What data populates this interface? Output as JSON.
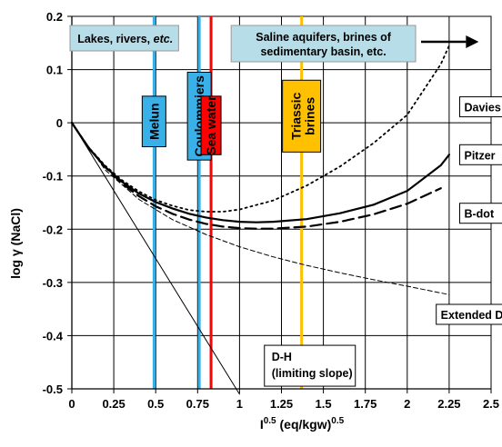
{
  "chart_data": {
    "type": "line",
    "xlabel": "I^0.5 (eq/kgw)^0.5",
    "xlabel_main": "I",
    "xlabel_sup1": "0.5",
    "xlabel_mid": " (eq/kgw)",
    "xlabel_sup2": "0.5",
    "ylabel": "log γ (NaCl)",
    "xlim": [
      0,
      2.5
    ],
    "ylim": [
      -0.5,
      0.2
    ],
    "x_ticks": [
      "0",
      "0.25",
      "0.5",
      "0.75",
      "1",
      "1.25",
      "1.5",
      "1.75",
      "2",
      "2.25",
      "2.5"
    ],
    "y_ticks": [
      "0.2",
      "0.1",
      "0",
      "-0.1",
      "-0.2",
      "-0.3",
      "-0.4",
      "-0.5"
    ],
    "x_tick_values": [
      0,
      0.25,
      0.5,
      0.75,
      1,
      1.25,
      1.5,
      1.75,
      2,
      2.25,
      2.5
    ],
    "y_tick_values": [
      0.2,
      0.1,
      0,
      -0.1,
      -0.2,
      -0.3,
      -0.4,
      -0.5
    ],
    "grid": true,
    "series": [
      {
        "name": "Davies",
        "style": "dotted",
        "x": [
          0,
          0.1,
          0.2,
          0.3,
          0.4,
          0.5,
          0.6,
          0.7,
          0.8,
          0.9,
          1.0,
          1.2,
          1.4,
          1.6,
          1.8,
          2.0,
          2.2,
          2.25
        ],
        "y": [
          0,
          -0.046,
          -0.081,
          -0.108,
          -0.129,
          -0.145,
          -0.156,
          -0.164,
          -0.167,
          -0.167,
          -0.163,
          -0.146,
          -0.118,
          -0.082,
          -0.038,
          0.015,
          0.11,
          0.145
        ]
      },
      {
        "name": "Pitzer",
        "style": "solid",
        "x": [
          0,
          0.1,
          0.2,
          0.3,
          0.4,
          0.5,
          0.6,
          0.7,
          0.8,
          0.9,
          1.0,
          1.1,
          1.2,
          1.4,
          1.6,
          1.8,
          2.0,
          2.2,
          2.25
        ],
        "y": [
          0,
          -0.047,
          -0.083,
          -0.111,
          -0.133,
          -0.149,
          -0.161,
          -0.171,
          -0.178,
          -0.183,
          -0.186,
          -0.187,
          -0.186,
          -0.181,
          -0.17,
          -0.154,
          -0.128,
          -0.08,
          -0.06
        ]
      },
      {
        "name": "B-dot",
        "style": "dashed",
        "x": [
          0,
          0.1,
          0.2,
          0.3,
          0.4,
          0.5,
          0.6,
          0.7,
          0.8,
          0.9,
          1.0,
          1.1,
          1.2,
          1.4,
          1.6,
          1.8,
          2.0,
          2.2
        ],
        "y": [
          0,
          -0.047,
          -0.084,
          -0.114,
          -0.138,
          -0.157,
          -0.171,
          -0.182,
          -0.19,
          -0.195,
          -0.198,
          -0.199,
          -0.199,
          -0.195,
          -0.186,
          -0.172,
          -0.152,
          -0.123
        ]
      },
      {
        "name": "Extended D-H",
        "style": "thin-dashed",
        "x": [
          0,
          0.2,
          0.4,
          0.6,
          0.8,
          1.0,
          1.2,
          1.4,
          1.6,
          1.8,
          2.0,
          2.25
        ],
        "y": [
          0,
          -0.089,
          -0.144,
          -0.182,
          -0.21,
          -0.233,
          -0.252,
          -0.268,
          -0.282,
          -0.295,
          -0.307,
          -0.323
        ]
      },
      {
        "name": "D-H (limiting slope)",
        "style": "thin-solid",
        "x": [
          0,
          1.0
        ],
        "y": [
          0,
          -0.51
        ]
      }
    ],
    "curve_labels": [
      {
        "text": "Davies",
        "series": "Davies",
        "x": 2.34,
        "y": 0.03
      },
      {
        "text": "Pitzer",
        "series": "Pitzer",
        "x": 2.34,
        "y": -0.06
      },
      {
        "text": "B-dot",
        "series": "B-dot",
        "x": 2.34,
        "y": -0.17
      },
      {
        "text": "Extended D-H",
        "series": "Extended D-H",
        "x": 2.2,
        "y": -0.36
      },
      {
        "text_line1": "D-H",
        "text_line2": "(limiting slope)",
        "series": "D-H (limiting slope)",
        "x": 1.17,
        "y": -0.425
      }
    ],
    "vertical_lines": [
      {
        "label": "Melun",
        "x": 0.49,
        "color": "#3ab0e8",
        "label_top": 0.05,
        "label_bottom": -0.045
      },
      {
        "label": "Coulommiers",
        "x": 0.76,
        "color": "#3ab0e8",
        "label_top": 0.095,
        "label_bottom": -0.07
      },
      {
        "label": "Sea water",
        "x": 0.83,
        "color": "#ff0000",
        "label_top": 0.05,
        "label_bottom": -0.06
      },
      {
        "label_line1": "Triassic",
        "label_line2": "brines",
        "x": 1.37,
        "color": "#ffc000",
        "label_top": 0.08,
        "label_bottom": -0.055
      }
    ],
    "region_labels": [
      {
        "text": "Lakes, rivers, ",
        "text_italic": "etc.",
        "x_min": 0.0,
        "x_max": 0.68
      },
      {
        "line1": "Saline aquifers, brines of",
        "line2": "sedimentary basin, etc.",
        "x_min": 0.95,
        "x_max": 2.05
      }
    ],
    "colors": {
      "region_box": "#b7dde8",
      "blue_label": "#3ab0e8",
      "sea_water": "#ff0000",
      "triassic": "#ffc000"
    }
  }
}
